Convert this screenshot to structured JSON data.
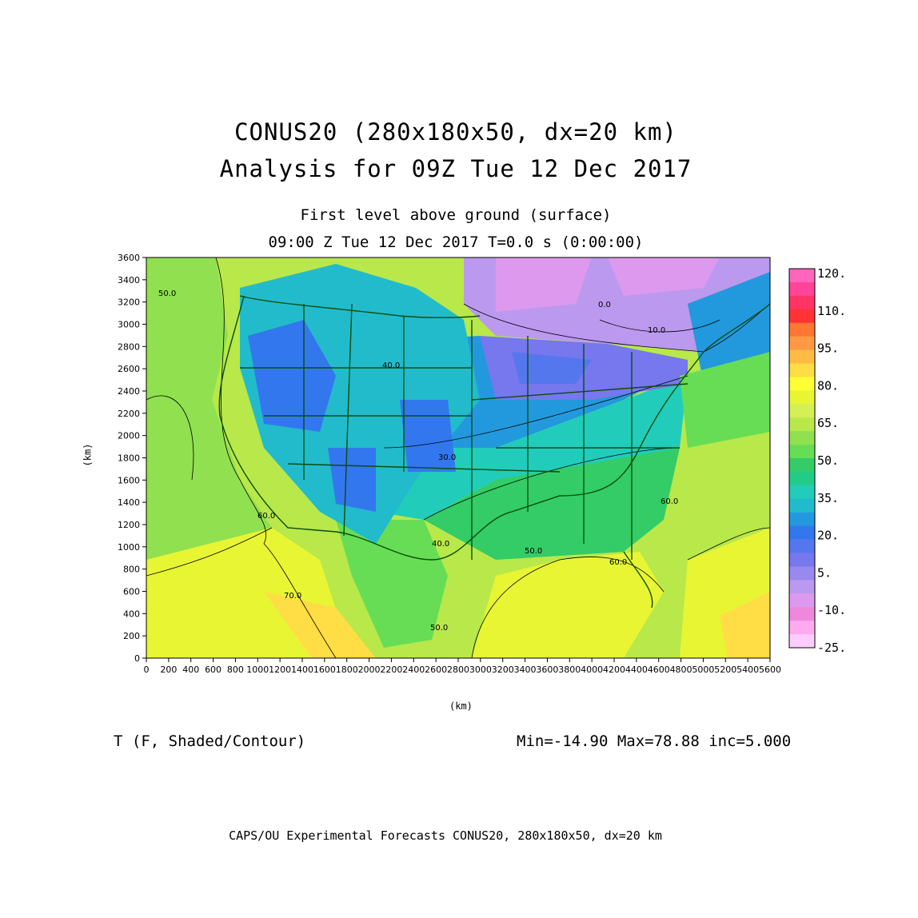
{
  "title": {
    "line1": "CONUS20 (280x180x50, dx=20 km)",
    "line2": "Analysis for 09Z Tue 12 Dec 2017"
  },
  "subtitle": {
    "line1": "First level above ground (surface)",
    "line2": "09:00 Z Tue 12 Dec 2017    T=0.0 s (0:00:00)"
  },
  "axes": {
    "y_label": "(km)",
    "x_label": "(km)",
    "y_ticks": [
      "0",
      "200",
      "400",
      "600",
      "800",
      "1000",
      "1200",
      "1400",
      "1600",
      "1800",
      "2000",
      "2200",
      "2400",
      "2600",
      "2800",
      "3000",
      "3200",
      "3400",
      "3600"
    ],
    "x_ticks": [
      "0",
      "200",
      "400",
      "600",
      "800",
      "1000",
      "1200",
      "1400",
      "1600",
      "1800",
      "2000",
      "2200",
      "2400",
      "2600",
      "2800",
      "3000",
      "3200",
      "3400",
      "3600",
      "3800",
      "4000",
      "4200",
      "4400",
      "4600",
      "4800",
      "5000",
      "5200",
      "5400",
      "5600"
    ]
  },
  "colorbar": {
    "labels": [
      "120.",
      "110.",
      "95.",
      "80.",
      "65.",
      "50.",
      "35.",
      "20.",
      "5.",
      "-10.",
      "-25."
    ],
    "colors": [
      "#ff66bb",
      "#ff4499",
      "#ff3366",
      "#ff3333",
      "#ff7733",
      "#ff9944",
      "#ffbb44",
      "#ffdd44",
      "#ffff33",
      "#e8f533",
      "#d4f055",
      "#b8e84a",
      "#90e050",
      "#66dd55",
      "#33cc66",
      "#22cc88",
      "#22ccbb",
      "#22bbcc",
      "#2299dd",
      "#3377ee",
      "#5577ee",
      "#7777ee",
      "#9988ee",
      "#bb99ee",
      "#dd99ee",
      "#ee88dd",
      "#ffaaee",
      "#ffccff"
    ]
  },
  "contour_labels": [
    "50.0",
    "40.0",
    "30.0",
    "10.0",
    "0.0",
    "50.0",
    "60.0",
    "40.0",
    "60.0",
    "70.0",
    "50.0",
    "60.0"
  ],
  "footer": {
    "field": "T (F, Shaded/Contour)",
    "stats": "Min=-14.90 Max=78.88 inc=5.000",
    "credit": "CAPS/OU Experimental Forecasts  CONUS20, 280x180x50, dx=20 km"
  }
}
